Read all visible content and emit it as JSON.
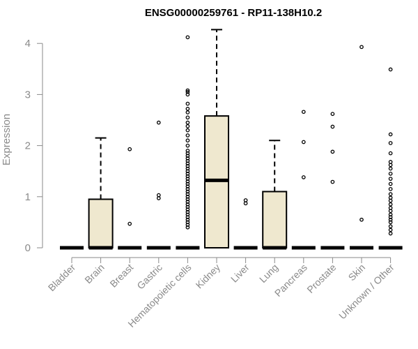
{
  "chart_data": {
    "type": "box",
    "title": "ENSG00000259761 - RP11-138H10.2",
    "ylabel": "Expression",
    "xlabel": "",
    "ylim": [
      0,
      4.3
    ],
    "yticks": [
      0,
      1,
      2,
      3,
      4
    ],
    "colors": {
      "box_fill": "#efe8cf",
      "stroke": "#000000",
      "axis": "#8a8a8a"
    },
    "categories": [
      "Bladder",
      "Brain",
      "Breast",
      "Gastric",
      "Hematopoietic cells",
      "Kidney",
      "Liver",
      "Lung",
      "Pancreas",
      "Prostate",
      "Skin",
      "Unknown / Other"
    ],
    "boxes": [
      {
        "q1": 0,
        "median": 0,
        "q3": 0,
        "whisker_low": 0,
        "whisker_high": 0,
        "outliers": []
      },
      {
        "q1": 0,
        "median": 0,
        "q3": 0.95,
        "whisker_low": 0,
        "whisker_high": 2.15,
        "outliers": []
      },
      {
        "q1": 0,
        "median": 0,
        "q3": 0,
        "whisker_low": 0,
        "whisker_high": 0,
        "outliers": [
          0.47,
          1.93
        ]
      },
      {
        "q1": 0,
        "median": 0,
        "q3": 0,
        "whisker_low": 0,
        "whisker_high": 0,
        "outliers": [
          0.97,
          1.03,
          2.45
        ]
      },
      {
        "q1": 0,
        "median": 0,
        "q3": 0,
        "whisker_low": 0,
        "whisker_high": 0,
        "outliers": [
          0.4,
          0.45,
          0.5,
          0.55,
          0.6,
          0.65,
          0.7,
          0.75,
          0.8,
          0.85,
          0.9,
          0.95,
          1.0,
          1.05,
          1.1,
          1.15,
          1.2,
          1.25,
          1.3,
          1.35,
          1.4,
          1.45,
          1.5,
          1.55,
          1.6,
          1.65,
          1.7,
          1.75,
          1.8,
          1.85,
          1.9,
          2.0,
          2.1,
          2.2,
          2.3,
          2.38,
          2.45,
          2.55,
          2.65,
          2.72,
          2.82,
          3.0,
          3.05,
          3.08,
          4.12
        ]
      },
      {
        "q1": 0,
        "median": 1.32,
        "q3": 2.58,
        "whisker_low": 0,
        "whisker_high": 4.27,
        "outliers": []
      },
      {
        "q1": 0,
        "median": 0,
        "q3": 0,
        "whisker_low": 0,
        "whisker_high": 0,
        "outliers": [
          0.87,
          0.93
        ]
      },
      {
        "q1": 0,
        "median": 0,
        "q3": 1.1,
        "whisker_low": 0,
        "whisker_high": 2.1,
        "outliers": []
      },
      {
        "q1": 0,
        "median": 0,
        "q3": 0,
        "whisker_low": 0,
        "whisker_high": 0,
        "outliers": [
          1.38,
          2.07,
          2.66
        ]
      },
      {
        "q1": 0,
        "median": 0,
        "q3": 0,
        "whisker_low": 0,
        "whisker_high": 0,
        "outliers": [
          1.29,
          1.88,
          2.37,
          2.62
        ]
      },
      {
        "q1": 0,
        "median": 0,
        "q3": 0,
        "whisker_low": 0,
        "whisker_high": 0,
        "outliers": [
          0.55,
          3.93
        ]
      },
      {
        "q1": 0,
        "median": 0,
        "q3": 0,
        "whisker_low": 0,
        "whisker_high": 0,
        "outliers": [
          0.28,
          0.35,
          0.42,
          0.5,
          0.55,
          0.6,
          0.65,
          0.72,
          0.78,
          0.85,
          0.92,
          0.98,
          1.05,
          1.15,
          1.25,
          1.35,
          1.45,
          1.55,
          1.62,
          1.68,
          1.85,
          2.05,
          2.22,
          3.49
        ]
      }
    ]
  }
}
